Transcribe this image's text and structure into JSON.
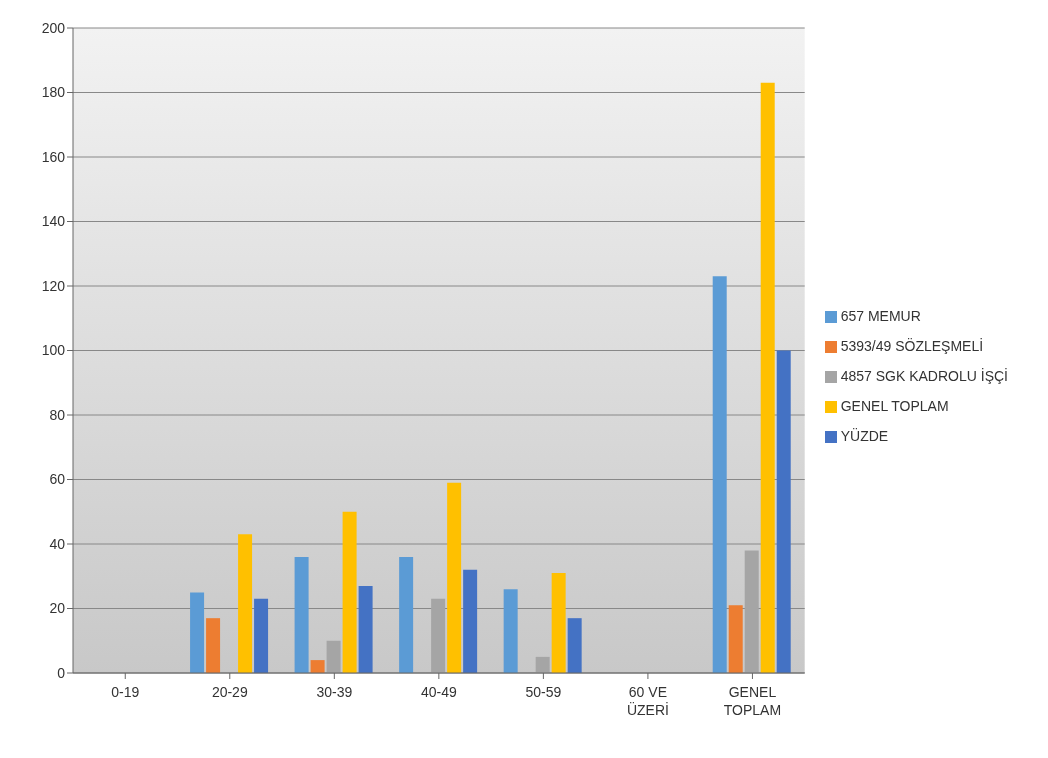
{
  "chart_data": {
    "type": "bar",
    "categories": [
      "0-19",
      "20-29",
      "30-39",
      "40-49",
      "50-59",
      "60 VE ÜZERİ",
      "GENEL TOPLAM"
    ],
    "series": [
      {
        "name": "657 MEMUR",
        "color": "#5b9bd5",
        "values": [
          0,
          25,
          36,
          36,
          26,
          0,
          123
        ]
      },
      {
        "name": "5393/49 SÖZLEŞMELİ",
        "color": "#ed7d31",
        "values": [
          0,
          17,
          4,
          0,
          0,
          0,
          21
        ]
      },
      {
        "name": "4857 SGK KADROLU İŞÇİ",
        "color": "#a5a5a5",
        "values": [
          0,
          0,
          10,
          23,
          5,
          0,
          38
        ]
      },
      {
        "name": "GENEL TOPLAM",
        "color": "#ffc000",
        "values": [
          0,
          43,
          50,
          59,
          31,
          0,
          183
        ]
      },
      {
        "name": "YÜZDE",
        "color": "#4472c4",
        "values": [
          0,
          23,
          27,
          32,
          17,
          0,
          100
        ]
      }
    ],
    "ylim": [
      0,
      200
    ],
    "yticks": [
      0,
      20,
      40,
      60,
      80,
      100,
      120,
      140,
      160,
      180,
      200
    ],
    "grid": "y",
    "legend": "right"
  }
}
